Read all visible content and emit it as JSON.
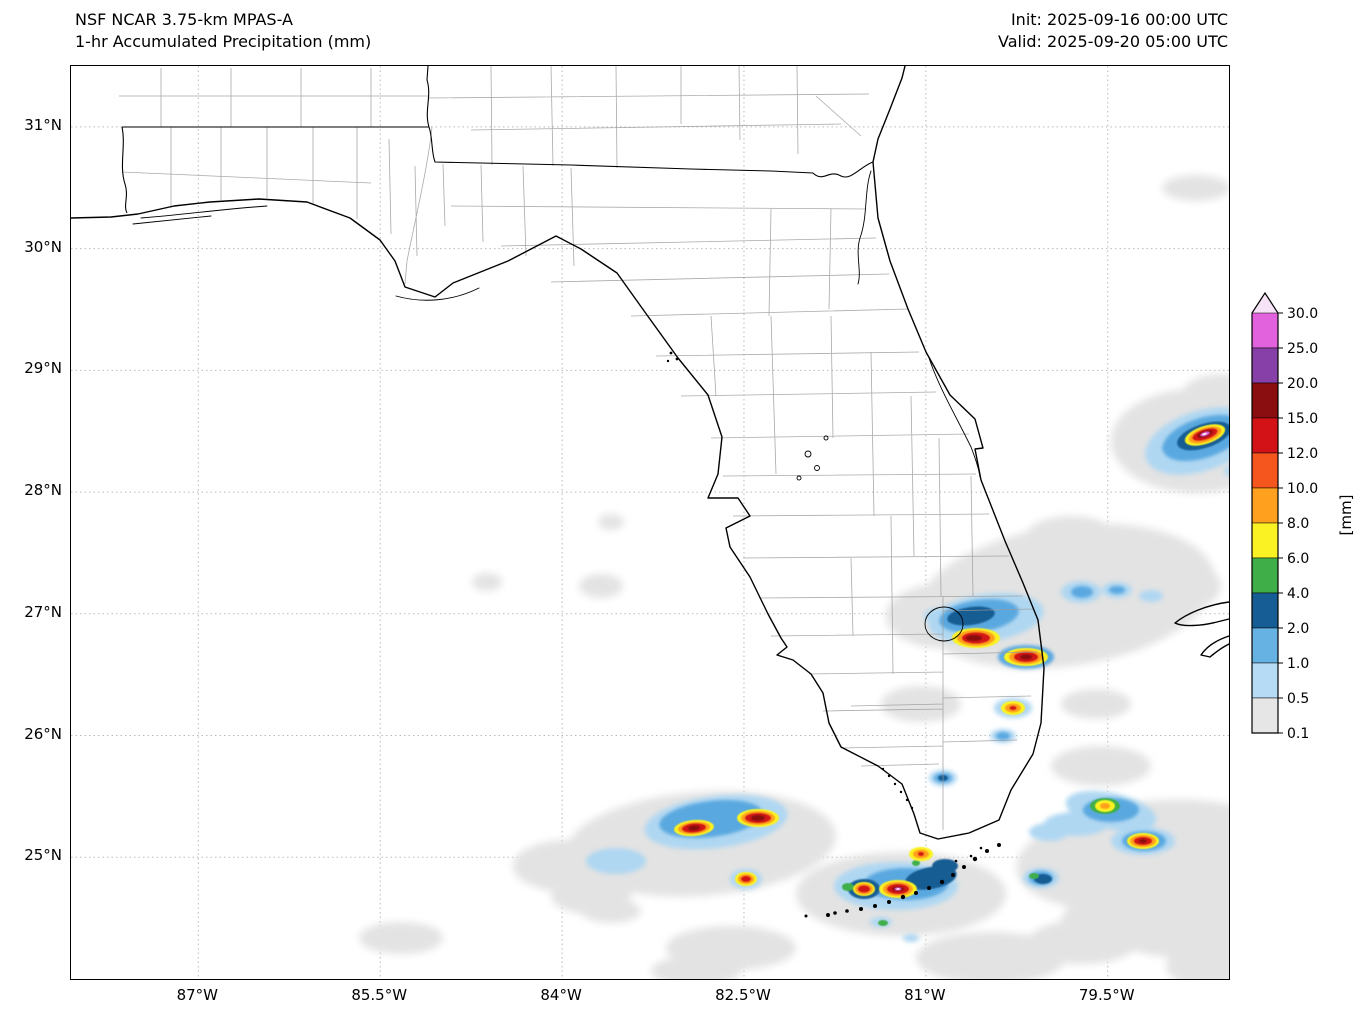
{
  "header": {
    "model_line1": "NSF NCAR 3.75-km MPAS-A",
    "model_line2": "1-hr Accumulated Precipitation (mm)",
    "init_label": "Init: 2025-09-16 00:00 UTC",
    "valid_label": "Valid: 2025-09-20 05:00 UTC"
  },
  "map": {
    "region": "Florida, southeast U.S. coast and adjacent Gulf / Atlantic waters",
    "extent": {
      "lon_min": -88.05,
      "lon_max": -78.5,
      "lat_min": 24.0,
      "lat_max": 31.5
    },
    "lat_ticks": [
      {
        "label": "31°N",
        "deg": 31
      },
      {
        "label": "30°N",
        "deg": 30
      },
      {
        "label": "29°N",
        "deg": 29
      },
      {
        "label": "28°N",
        "deg": 28
      },
      {
        "label": "27°N",
        "deg": 27
      },
      {
        "label": "26°N",
        "deg": 26
      },
      {
        "label": "25°N",
        "deg": 25
      }
    ],
    "lon_ticks": [
      {
        "label": "87°W",
        "deg": -87
      },
      {
        "label": "85.5°W",
        "deg": -85.5
      },
      {
        "label": "84°W",
        "deg": -84
      },
      {
        "label": "82.5°W",
        "deg": -82.5
      },
      {
        "label": "81°W",
        "deg": -81
      },
      {
        "label": "79.5°W",
        "deg": -79.5
      }
    ],
    "gridlines": "dotted at labeled ticks"
  },
  "colorbar": {
    "units_label": "[mm]",
    "levels_top_down": [
      "30.0",
      "25.0",
      "20.0",
      "15.0",
      "12.0",
      "10.0",
      "8.0",
      "6.0",
      "4.0",
      "2.0",
      "1.0",
      "0.5",
      "0.1"
    ],
    "colors_top_down": [
      "#e261dd",
      "#8640a8",
      "#8a0d10",
      "#d21217",
      "#f4561d",
      "#ffa01e",
      "#fbf224",
      "#3fae49",
      "#155d94",
      "#66b3e3",
      "#b5dbf5",
      "#e6e6e6"
    ],
    "over_color": "#f6e3f7"
  },
  "precip_features": [
    {
      "area": "Atlantic well east of Cape Canaveral (~28.4N 78.8W)",
      "max_band_mm": "25-30"
    },
    {
      "area": "Interior south peninsula near/around Lake Okeechobee (~26.6-26.8N 81-81.6W)",
      "max_band_mm": "15-20"
    },
    {
      "area": "Gulf of Mexico southwest of Naples (~25.2-25.4N 82.3-82.8W)",
      "max_band_mm": "15-20"
    },
    {
      "area": "Florida Bay and the Keys (~24.7-24.9N 80.9-81.5W)",
      "max_band_mm": "25-30 (small core)"
    },
    {
      "area": "Atlantic southeast of Miami / over the Straits (~24.9-25.3N 79.4-79.9W)",
      "max_band_mm": "12-15"
    },
    {
      "area": "Widespread very light accumulation (0.1-0.5 mm) over surrounding waters",
      "max_band_mm": "0.1-0.5"
    }
  ]
}
